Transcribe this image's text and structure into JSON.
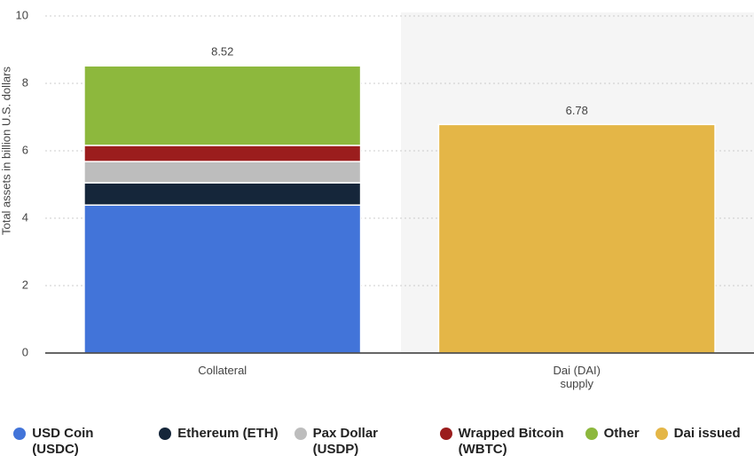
{
  "chart_data": {
    "type": "stacked_bar",
    "y_label": "Total assets in billion U.S. dollars",
    "categories": [
      "Collateral",
      "Dai (DAI) supply"
    ],
    "series": [
      {
        "name": "USD Coin (USDC)",
        "color": "#4274d9",
        "values": [
          4.39,
          null
        ]
      },
      {
        "name": "Ethereum (ETH)",
        "color": "#15263a",
        "values": [
          0.66,
          null
        ]
      },
      {
        "name": "Pax Dollar (USDP)",
        "color": "#bdbdbd",
        "values": [
          0.63,
          null
        ]
      },
      {
        "name": "Wrapped Bitcoin (WBTC)",
        "color": "#9b1d1d",
        "values": [
          0.48,
          null
        ]
      },
      {
        "name": "Other",
        "color": "#8db83d",
        "values": [
          2.36,
          null
        ]
      },
      {
        "name": "Dai issued",
        "color": "#e4b647",
        "values": [
          null,
          6.78
        ]
      }
    ],
    "totals": [
      8.52,
      6.78
    ],
    "ylim": [
      0,
      10
    ],
    "yticks": [
      0,
      2,
      4,
      6,
      8,
      10
    ],
    "grid": true
  }
}
